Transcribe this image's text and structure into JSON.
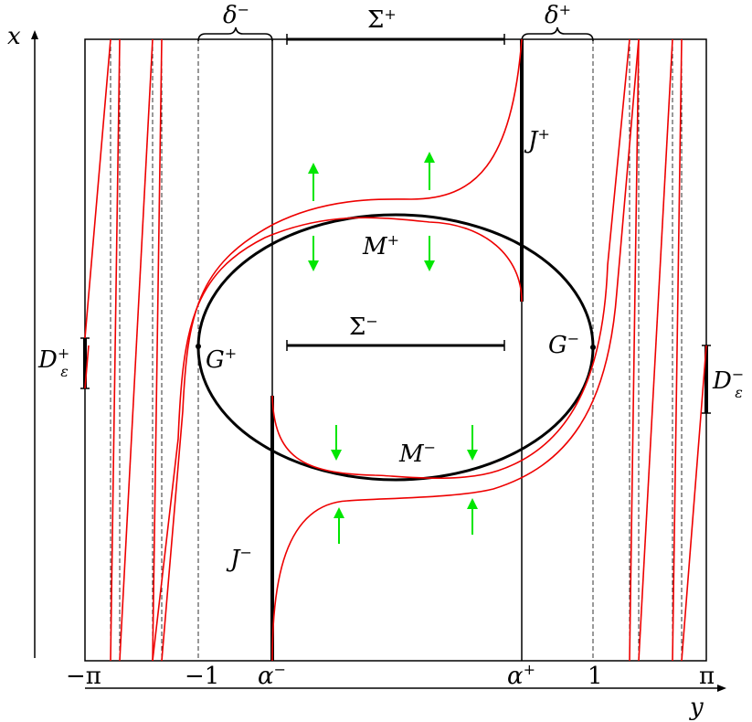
{
  "axes": {
    "x_axis_label": "x",
    "y_axis_label": "y"
  },
  "ticks": [
    "−π",
    "−1",
    "α",
    "α",
    "1",
    "π"
  ],
  "tick_sup": [
    "",
    "",
    "−",
    "+",
    "",
    ""
  ],
  "labels": {
    "delta_minus": {
      "base": "δ",
      "sup": "−"
    },
    "delta_plus": {
      "base": "δ",
      "sup": "+"
    },
    "sigma_plus": {
      "base": "Σ",
      "sup": "+"
    },
    "sigma_minus": {
      "base": "Σ",
      "sup": "−"
    },
    "j_plus": {
      "base": "J",
      "sup": "+"
    },
    "j_minus": {
      "base": "J",
      "sup": "−"
    },
    "m_plus": {
      "base": "M",
      "sup": "+"
    },
    "m_minus": {
      "base": "M",
      "sup": "−"
    },
    "g_plus": {
      "base": "G",
      "sup": "+"
    },
    "g_minus": {
      "base": "G",
      "sup": "−"
    },
    "d_eps_plus": {
      "base": "D",
      "sub": "ε",
      "sup": "+"
    },
    "d_eps_minus": {
      "base": "D",
      "sub": "ε",
      "sup": "−"
    }
  },
  "colors": {
    "curve": "#ee0000",
    "arrow": "#00e600",
    "ink": "#000000"
  }
}
